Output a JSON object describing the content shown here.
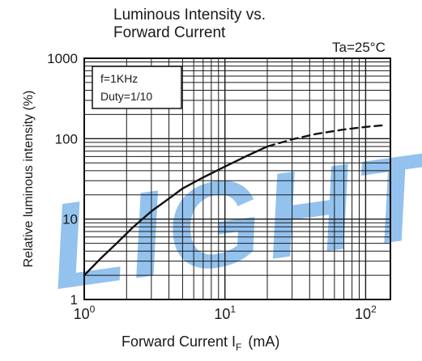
{
  "chart_data": {
    "type": "line",
    "title": "Luminous Intensity vs.\nForward Current",
    "title_lines": [
      "Luminous Intensity vs.",
      "Forward Current"
    ],
    "condition_label": "Ta=25°C",
    "xlabel": "Forward Current  I",
    "xlabel_sub": "F",
    "xlabel_unit": "(mA)",
    "ylabel": "Relative luminous intensity   (%)",
    "x_scale": "log",
    "y_scale": "log",
    "xlim": [
      1,
      150
    ],
    "ylim": [
      1,
      1000
    ],
    "x_ticks": [
      {
        "value": 1,
        "base": "10",
        "exp": "0"
      },
      {
        "value": 10,
        "base": "10",
        "exp": "1"
      },
      {
        "value": 100,
        "base": "10",
        "exp": "2"
      }
    ],
    "y_ticks": [
      {
        "value": 1,
        "label": "1"
      },
      {
        "value": 10,
        "label": "10"
      },
      {
        "value": 100,
        "label": "100"
      },
      {
        "value": 1000,
        "label": "1000"
      }
    ],
    "grid": true,
    "legend_box": {
      "lines": [
        "f=1KHz",
        "Duty=1/10"
      ],
      "placement": "top-left"
    },
    "series": [
      {
        "style": "solid",
        "color": "#111111",
        "x": [
          1,
          1.3,
          1.7,
          2.2,
          3,
          4,
          5,
          7,
          10,
          14,
          20
        ],
        "y": [
          2,
          3.2,
          5,
          7.8,
          12.5,
          18,
          24,
          33,
          45,
          60,
          80
        ]
      },
      {
        "style": "dashed",
        "color": "#111111",
        "x": [
          20,
          30,
          45,
          70,
          100,
          140
        ],
        "y": [
          80,
          98,
          115,
          130,
          140,
          148
        ]
      }
    ],
    "watermark": {
      "text": "LIGHT",
      "color": "#3a8fe0"
    }
  }
}
